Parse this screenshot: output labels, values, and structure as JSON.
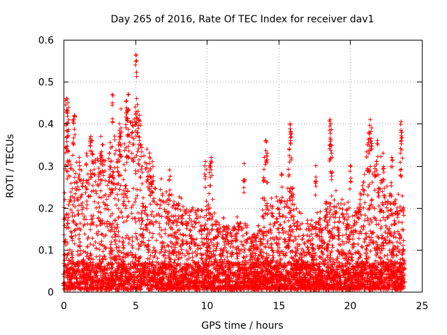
{
  "chart_data": {
    "type": "scatter",
    "title": "Day 265 of 2016, Rate Of TEC Index for receiver dav1",
    "xlabel": "GPS time / hours",
    "ylabel": "ROTI / TECUs",
    "xlim": [
      0,
      25
    ],
    "ylim": [
      0,
      0.6
    ],
    "xticks": [
      0,
      5,
      10,
      15,
      20,
      25
    ],
    "yticks": [
      0,
      0.1,
      0.2,
      0.3,
      0.4,
      0.5,
      0.6
    ],
    "grid": true,
    "marker": "+",
    "color": "#ff0000",
    "series": [
      {
        "name": "ROTI",
        "envelope": {
          "hours": [
            0.0,
            0.3,
            0.6,
            1.0,
            1.5,
            2.0,
            2.5,
            3.0,
            3.5,
            4.0,
            4.5,
            5.0,
            5.5,
            6.0,
            6.5,
            7.0,
            7.5,
            8.0,
            8.5,
            9.0,
            9.5,
            10.0,
            10.5,
            11.0,
            11.5,
            12.0,
            12.5,
            13.0,
            13.5,
            14.0,
            14.5,
            15.0,
            15.5,
            16.0,
            16.5,
            17.0,
            17.5,
            18.0,
            18.5,
            19.0,
            19.5,
            20.0,
            20.5,
            21.0,
            21.5,
            22.0,
            22.5,
            23.0,
            23.5,
            23.8
          ],
          "typical_max": [
            0.2,
            0.35,
            0.3,
            0.28,
            0.26,
            0.3,
            0.35,
            0.3,
            0.32,
            0.38,
            0.4,
            0.4,
            0.33,
            0.28,
            0.25,
            0.24,
            0.22,
            0.2,
            0.2,
            0.2,
            0.19,
            0.2,
            0.19,
            0.16,
            0.15,
            0.16,
            0.17,
            0.14,
            0.13,
            0.22,
            0.2,
            0.22,
            0.25,
            0.24,
            0.17,
            0.15,
            0.16,
            0.18,
            0.21,
            0.22,
            0.2,
            0.18,
            0.21,
            0.28,
            0.3,
            0.3,
            0.24,
            0.22,
            0.22,
            0.2
          ]
        },
        "peaks": [
          {
            "x": 0.2,
            "y": 0.46
          },
          {
            "x": 0.3,
            "y": 0.45
          },
          {
            "x": 0.25,
            "y": 0.43
          },
          {
            "x": 0.3,
            "y": 0.335
          },
          {
            "x": 0.2,
            "y": 0.4
          },
          {
            "x": 0.75,
            "y": 0.42
          },
          {
            "x": 0.7,
            "y": 0.41
          },
          {
            "x": 1.1,
            "y": 0.32
          },
          {
            "x": 1.6,
            "y": 0.33
          },
          {
            "x": 1.9,
            "y": 0.37
          },
          {
            "x": 2.0,
            "y": 0.36
          },
          {
            "x": 2.6,
            "y": 0.37
          },
          {
            "x": 2.7,
            "y": 0.35
          },
          {
            "x": 3.4,
            "y": 0.47
          },
          {
            "x": 3.2,
            "y": 0.33
          },
          {
            "x": 3.9,
            "y": 0.4
          },
          {
            "x": 4.0,
            "y": 0.39
          },
          {
            "x": 4.4,
            "y": 0.455
          },
          {
            "x": 4.5,
            "y": 0.47
          },
          {
            "x": 4.45,
            "y": 0.43
          },
          {
            "x": 4.8,
            "y": 0.38
          },
          {
            "x": 5.0,
            "y": 0.44
          },
          {
            "x": 5.05,
            "y": 0.565
          },
          {
            "x": 5.1,
            "y": 0.46
          },
          {
            "x": 5.2,
            "y": 0.43
          },
          {
            "x": 5.3,
            "y": 0.42
          },
          {
            "x": 5.4,
            "y": 0.35
          },
          {
            "x": 6.0,
            "y": 0.33
          },
          {
            "x": 6.2,
            "y": 0.31
          },
          {
            "x": 7.4,
            "y": 0.29
          },
          {
            "x": 9.9,
            "y": 0.31
          },
          {
            "x": 10.3,
            "y": 0.32
          },
          {
            "x": 10.2,
            "y": 0.3
          },
          {
            "x": 12.6,
            "y": 0.305
          },
          {
            "x": 14.1,
            "y": 0.36
          },
          {
            "x": 14.2,
            "y": 0.33
          },
          {
            "x": 14.0,
            "y": 0.32
          },
          {
            "x": 15.2,
            "y": 0.28
          },
          {
            "x": 15.8,
            "y": 0.4
          },
          {
            "x": 15.85,
            "y": 0.38
          },
          {
            "x": 15.75,
            "y": 0.34
          },
          {
            "x": 17.6,
            "y": 0.3
          },
          {
            "x": 18.6,
            "y": 0.41
          },
          {
            "x": 18.65,
            "y": 0.4
          },
          {
            "x": 18.6,
            "y": 0.35
          },
          {
            "x": 18.7,
            "y": 0.33
          },
          {
            "x": 20.0,
            "y": 0.3
          },
          {
            "x": 21.4,
            "y": 0.41
          },
          {
            "x": 21.5,
            "y": 0.39
          },
          {
            "x": 21.3,
            "y": 0.38
          },
          {
            "x": 21.2,
            "y": 0.35
          },
          {
            "x": 21.9,
            "y": 0.36
          },
          {
            "x": 22.3,
            "y": 0.33
          },
          {
            "x": 22.9,
            "y": 0.32
          },
          {
            "x": 23.55,
            "y": 0.405
          },
          {
            "x": 23.6,
            "y": 0.38
          },
          {
            "x": 23.5,
            "y": 0.33
          }
        ]
      }
    ]
  }
}
